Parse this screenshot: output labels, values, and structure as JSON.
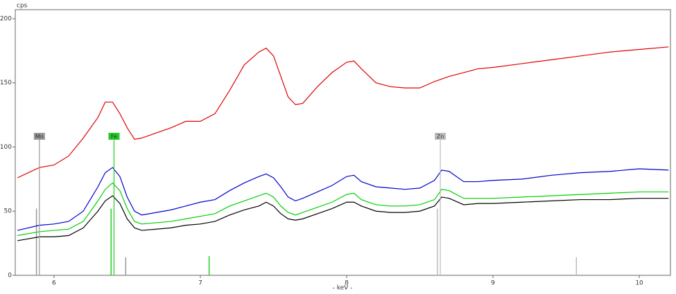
{
  "chart_data": {
    "type": "line",
    "y_label": "cps",
    "x_label": "- keV -",
    "xlim": [
      5.735,
      10.213
    ],
    "ylim": [
      0,
      207
    ],
    "xticks": [
      6,
      7,
      8,
      9,
      10
    ],
    "yticks": [
      0,
      50,
      100,
      150,
      200
    ],
    "x": [
      5.75,
      5.9,
      6.0,
      6.1,
      6.2,
      6.3,
      6.35,
      6.4,
      6.45,
      6.5,
      6.55,
      6.6,
      6.7,
      6.8,
      6.9,
      7.0,
      7.1,
      7.2,
      7.3,
      7.4,
      7.45,
      7.5,
      7.55,
      7.6,
      7.65,
      7.7,
      7.8,
      7.9,
      8.0,
      8.05,
      8.1,
      8.2,
      8.3,
      8.4,
      8.5,
      8.6,
      8.65,
      8.7,
      8.8,
      8.9,
      9.0,
      9.2,
      9.4,
      9.6,
      9.8,
      10.0,
      10.2
    ],
    "series": [
      {
        "color": "#e00000",
        "values": [
          76,
          84,
          86,
          93,
          107,
          123,
          135,
          135,
          126,
          115,
          106,
          107,
          111,
          115,
          120,
          120,
          126,
          144,
          164,
          174,
          177,
          171,
          155,
          139,
          133,
          134,
          147,
          158,
          166,
          167,
          161,
          150,
          147,
          146,
          146,
          151,
          153,
          155,
          158,
          161,
          162,
          165,
          168,
          171,
          174,
          176,
          178
        ]
      },
      {
        "color": "#0000d0",
        "values": [
          35,
          39,
          40,
          42,
          50,
          69,
          80,
          84,
          77,
          61,
          50,
          47,
          49,
          51,
          54,
          57,
          59,
          66,
          72,
          77,
          79,
          76,
          69,
          61,
          58,
          60,
          65,
          70,
          77,
          78,
          73,
          69,
          68,
          67,
          68,
          74,
          82,
          81,
          73,
          73,
          74,
          75,
          78,
          80,
          81,
          83,
          82
        ]
      },
      {
        "color": "#00d000",
        "values": [
          31,
          34,
          35,
          36,
          42,
          58,
          67,
          72,
          66,
          52,
          42,
          40,
          41,
          42,
          44,
          46,
          48,
          54,
          58,
          62,
          64,
          61,
          54,
          49,
          47,
          49,
          53,
          57,
          63,
          64,
          59,
          55,
          54,
          54,
          55,
          59,
          67,
          66,
          60,
          60,
          60,
          61,
          62,
          63,
          64,
          65,
          65
        ]
      },
      {
        "color": "#000000",
        "values": [
          27,
          30,
          30,
          31,
          37,
          50,
          58,
          62,
          56,
          44,
          37,
          35,
          36,
          37,
          39,
          40,
          42,
          47,
          51,
          54,
          57,
          54,
          48,
          44,
          43,
          44,
          48,
          52,
          57,
          57,
          54,
          50,
          49,
          49,
          50,
          54,
          61,
          60,
          55,
          56,
          56,
          57,
          58,
          59,
          59,
          60,
          60
        ]
      }
    ],
    "elements": [
      {
        "label": "Mn",
        "x": 5.9,
        "color": "#999999"
      },
      {
        "label": "Fe",
        "x": 6.41,
        "color": "#22cc22"
      },
      {
        "label": "Zn",
        "x": 8.64,
        "color": "#bbbbbb"
      }
    ],
    "sticks": [
      {
        "x": 5.88,
        "value": 52,
        "color": "#999999"
      },
      {
        "x": 6.39,
        "value": 52,
        "color": "#22cc22"
      },
      {
        "x": 6.49,
        "value": 14,
        "color": "#999999"
      },
      {
        "x": 7.06,
        "value": 15,
        "color": "#22cc22"
      },
      {
        "x": 8.62,
        "value": 52,
        "color": "#bbbbbb"
      },
      {
        "x": 9.57,
        "value": 14,
        "color": "#bbbbbb"
      }
    ]
  }
}
